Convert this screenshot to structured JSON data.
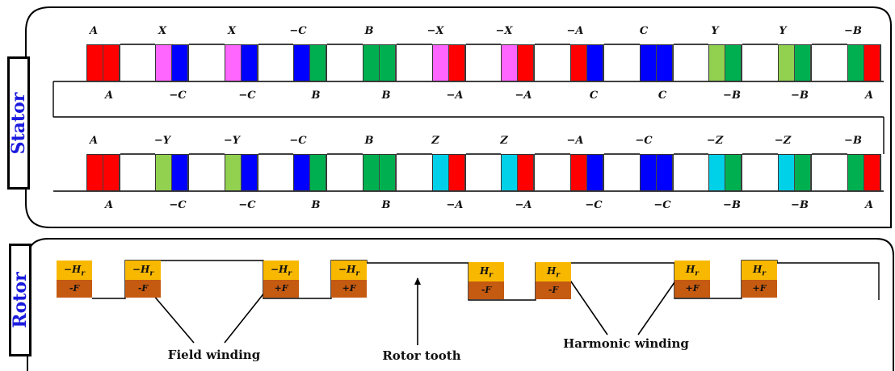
{
  "stator": {
    "title": "Stator",
    "row1": {
      "top_labels": [
        "A",
        "X",
        "X",
        "−C",
        "B",
        "−X",
        "−X",
        "−A",
        "C",
        "Y",
        "Y",
        "−B"
      ],
      "bottom_labels": [
        "A",
        "−C",
        "−C",
        "B",
        "B",
        "−A",
        "−A",
        "C",
        "C",
        "−B",
        "−B",
        "A"
      ],
      "slots": [
        [
          "#ff0000",
          "#ff0000"
        ],
        [
          "#ff66ff",
          "#0000ff"
        ],
        [
          "#ff66ff",
          "#0000ff"
        ],
        [
          "#0000ff",
          "#00b050"
        ],
        [
          "#00b050",
          "#00b050"
        ],
        [
          "#ff66ff",
          "#ff0000"
        ],
        [
          "#ff66ff",
          "#ff0000"
        ],
        [
          "#ff0000",
          "#0000ff"
        ],
        [
          "#0000ff",
          "#0000ff"
        ],
        [
          "#92d050",
          "#00b050"
        ],
        [
          "#92d050",
          "#00b050"
        ],
        [
          "#00b050",
          "#ff0000"
        ]
      ]
    },
    "row2": {
      "top_labels": [
        "A",
        "−Y",
        "−Y",
        "−C",
        "B",
        "Z",
        "Z",
        "−A",
        "−C",
        "−Z",
        "−Z",
        "−B"
      ],
      "bottom_labels": [
        "A",
        "−C",
        "−C",
        "B",
        "B",
        "−A",
        "−A",
        "−C",
        "−C",
        "−B",
        "−B",
        "A"
      ],
      "slots": [
        [
          "#ff0000",
          "#ff0000"
        ],
        [
          "#92d050",
          "#0000ff"
        ],
        [
          "#92d050",
          "#0000ff"
        ],
        [
          "#0000ff",
          "#00b050"
        ],
        [
          "#00b050",
          "#00b050"
        ],
        [
          "#00d0e8",
          "#ff0000"
        ],
        [
          "#00d0e8",
          "#ff0000"
        ],
        [
          "#ff0000",
          "#0000ff"
        ],
        [
          "#0000ff",
          "#0000ff"
        ],
        [
          "#00d0e8",
          "#00b050"
        ],
        [
          "#00d0e8",
          "#00b050"
        ],
        [
          "#00b050",
          "#ff0000"
        ]
      ]
    }
  },
  "rotor": {
    "title": "Rotor",
    "coils": [
      {
        "top": "−H",
        "sub": "r",
        "bottom": "-F"
      },
      {
        "top": "−H",
        "sub": "r",
        "bottom": "-F"
      },
      {
        "top": "−H",
        "sub": "r",
        "bottom": "+F"
      },
      {
        "top": "−H",
        "sub": "r",
        "bottom": "+F"
      },
      {
        "top": "H",
        "sub": "r",
        "bottom": "-F"
      },
      {
        "top": "H",
        "sub": "r",
        "bottom": "-F"
      },
      {
        "top": "H",
        "sub": "r",
        "bottom": "+F"
      },
      {
        "top": "H",
        "sub": "r",
        "bottom": "+F"
      }
    ],
    "captions": {
      "field": "Field winding",
      "tooth": "Rotor tooth",
      "harmonic": "Harmonic winding"
    }
  }
}
